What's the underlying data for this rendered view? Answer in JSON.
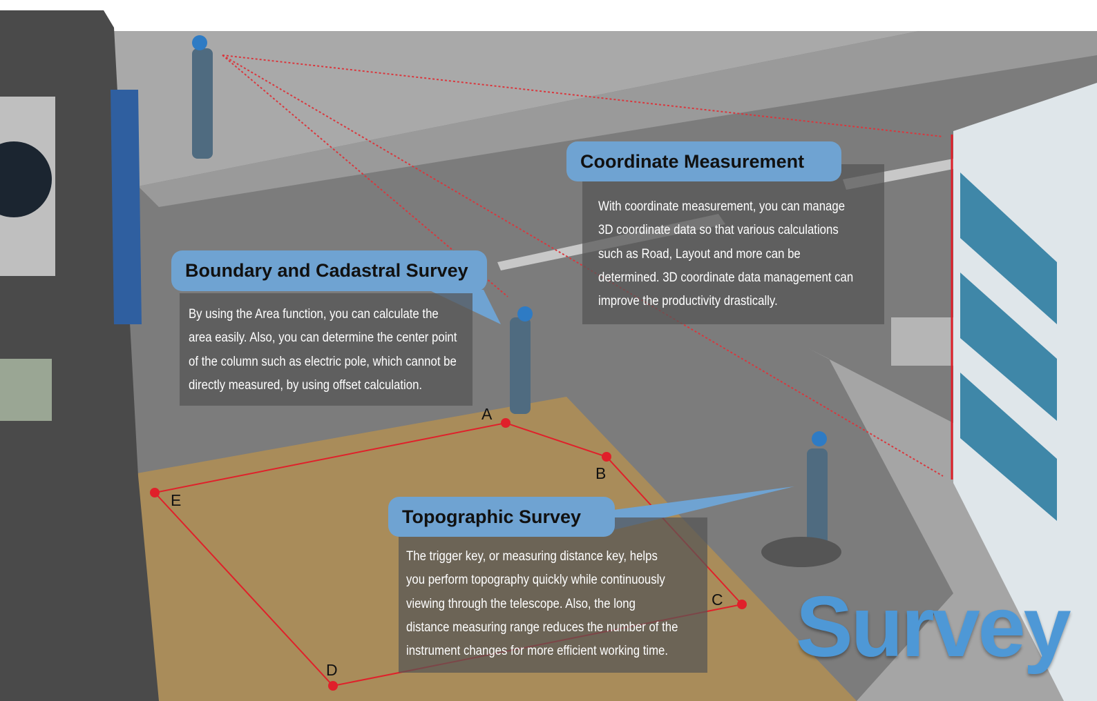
{
  "title": "Survey",
  "callouts": [
    {
      "heading": "Coordinate Measurement",
      "lines": [
        "With coordinate measurement, you can manage",
        "3D coordinate data so that various calculations",
        "such as Road, Layout and more can be",
        "determined. 3D coordinate data management can",
        "improve the productivity drastically."
      ]
    },
    {
      "heading": "Boundary and Cadastral Survey",
      "lines": [
        "By using the Area function, you can calculate the",
        "area easily. Also, you can determine the center point",
        "of the column such as electric pole, which cannot be",
        "directly measured, by using offset calculation."
      ]
    },
    {
      "heading": "Topographic Survey",
      "lines": [
        "The trigger key, or measuring distance key, helps",
        "you perform topography quickly while continuously",
        "viewing through the telescope. Also, the long",
        "distance measuring range reduces the number of the",
        "instrument changes for more efficient working time."
      ]
    }
  ],
  "points": [
    "A",
    "B",
    "C",
    "D",
    "E"
  ]
}
